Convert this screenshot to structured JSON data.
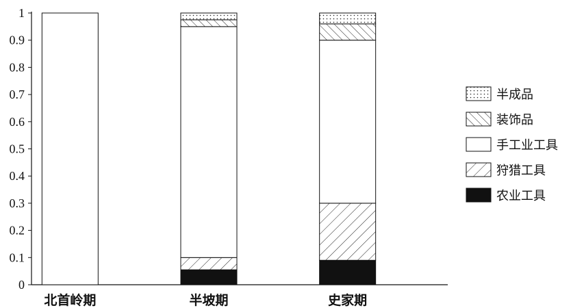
{
  "chart_data": {
    "type": "bar",
    "stacked": true,
    "categories": [
      "北首岭期",
      "半坡期",
      "史家期"
    ],
    "ylim": [
      0,
      1
    ],
    "yticks": [
      "0",
      "0.1",
      "0.2",
      "0.3",
      "0.4",
      "0.5",
      "0.6",
      "0.7",
      "0.8",
      "0.9",
      "1"
    ],
    "legend_position": "right",
    "series": [
      {
        "name": "农业工具",
        "pattern": "solid-black",
        "values": [
          0,
          0.055,
          0.09
        ]
      },
      {
        "name": "狩猎工具",
        "pattern": "hatch-forward",
        "values": [
          0,
          0.045,
          0.21
        ]
      },
      {
        "name": "手工业工具",
        "pattern": "blank",
        "values": [
          1,
          0.85,
          0.6
        ]
      },
      {
        "name": "装饰品",
        "pattern": "hatch-backward",
        "values": [
          0,
          0.025,
          0.06
        ]
      },
      {
        "name": "半成品",
        "pattern": "dotted",
        "values": [
          0,
          0.025,
          0.04
        ]
      }
    ],
    "legend_order": [
      "半成品",
      "装饰品",
      "手工业工具",
      "狩猎工具",
      "农业工具"
    ]
  }
}
